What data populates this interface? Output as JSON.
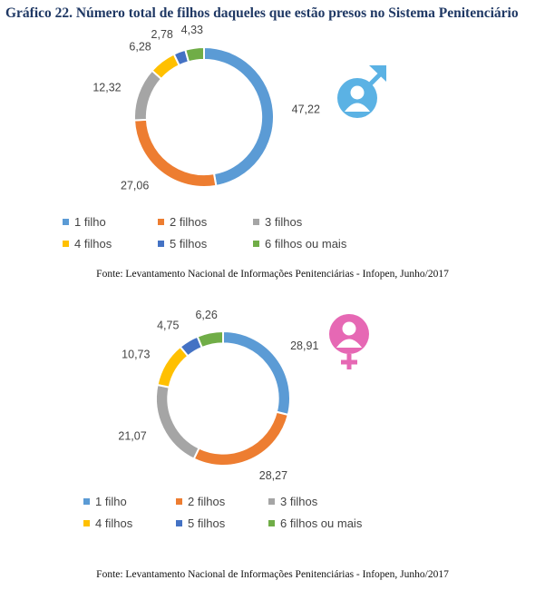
{
  "title": "Gráfico 22. Número total de filhos daqueles que estão presos no Sistema Penitenciário",
  "source_text": "Fonte: Levantamento Nacional de Informações Penitenciárias - Infopen, Junho/2017",
  "colors": [
    "#5b9bd5",
    "#ed7d31",
    "#a5a5a5",
    "#ffc000",
    "#4472c4",
    "#70ad47"
  ],
  "icons": {
    "male": "male-symbol-icon",
    "female": "female-symbol-icon"
  },
  "chart_data": [
    {
      "type": "pie",
      "categories": [
        "1 filho",
        "2 filhos",
        "3 filhos",
        "4 filhos",
        "5 filhos",
        "6 filhos ou mais"
      ],
      "values": [
        47.22,
        27.06,
        12.32,
        6.28,
        2.78,
        4.33
      ],
      "value_labels": [
        "47,22",
        "27,06",
        "12,32",
        "6,28",
        "2,78",
        "4,33"
      ],
      "legend": "bottom"
    },
    {
      "type": "pie",
      "categories": [
        "1 filho",
        "2 filhos",
        "3 filhos",
        "4 filhos",
        "5 filhos",
        "6 filhos ou mais"
      ],
      "values": [
        28.91,
        28.27,
        21.07,
        10.73,
        4.75,
        6.26
      ],
      "value_labels": [
        "28,91",
        "28,27",
        "21,07",
        "10,73",
        "4,75",
        "6,26"
      ],
      "legend": "bottom"
    }
  ]
}
